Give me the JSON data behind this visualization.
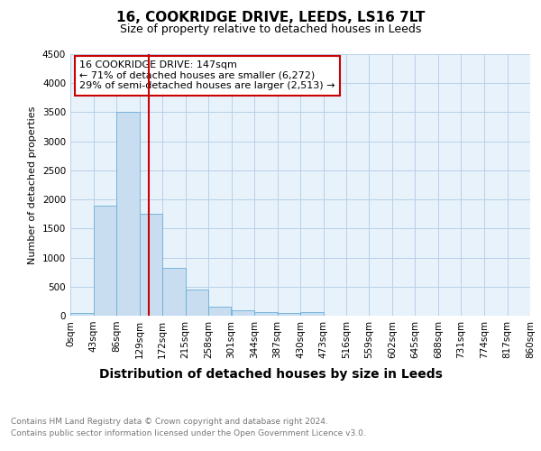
{
  "title": "16, COOKRIDGE DRIVE, LEEDS, LS16 7LT",
  "subtitle": "Size of property relative to detached houses in Leeds",
  "xlabel": "Distribution of detached houses by size in Leeds",
  "ylabel": "Number of detached properties",
  "annotation_line1": "16 COOKRIDGE DRIVE: 147sqm",
  "annotation_line2": "← 71% of detached houses are smaller (6,272)",
  "annotation_line3": "29% of semi-detached houses are larger (2,513) →",
  "footnote1": "Contains HM Land Registry data © Crown copyright and database right 2024.",
  "footnote2": "Contains public sector information licensed under the Open Government Licence v3.0.",
  "bar_edges": [
    0,
    43,
    86,
    129,
    172,
    215,
    258,
    301,
    344,
    387,
    430,
    473,
    516,
    559,
    602,
    645,
    688,
    731,
    774,
    817,
    860
  ],
  "bar_values": [
    50,
    1900,
    3500,
    1750,
    830,
    450,
    160,
    100,
    65,
    50,
    55,
    0,
    0,
    0,
    0,
    0,
    0,
    0,
    0,
    0
  ],
  "bar_color": "#c8ddf0",
  "bar_edge_color": "#6aaed6",
  "property_line_x": 147,
  "ylim": [
    0,
    4500
  ],
  "yticks": [
    0,
    500,
    1000,
    1500,
    2000,
    2500,
    3000,
    3500,
    4000,
    4500
  ],
  "bg_color": "#e8f2fb",
  "annotation_box_color": "#cc0000",
  "grid_color": "#b8d0e8",
  "title_fontsize": 11,
  "subtitle_fontsize": 9,
  "ylabel_fontsize": 8,
  "xlabel_fontsize": 10,
  "tick_fontsize": 7.5,
  "annot_fontsize": 8,
  "footnote_fontsize": 6.5,
  "footnote_color": "#777777"
}
